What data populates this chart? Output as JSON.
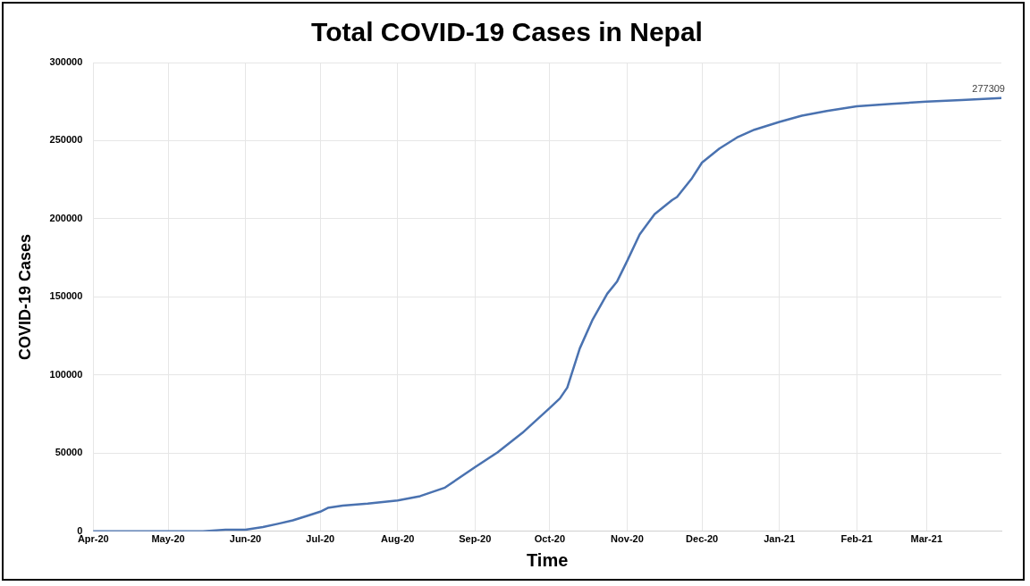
{
  "chart_data": {
    "type": "line",
    "title": "Total COVID-19 Cases in Nepal",
    "xlabel": "Time",
    "ylabel": "COVID-19 Cases",
    "x": [
      "2020-04-01",
      "2020-04-15",
      "2020-05-01",
      "2020-05-15",
      "2020-05-24",
      "2020-06-01",
      "2020-06-08",
      "2020-06-14",
      "2020-06-20",
      "2020-06-26",
      "2020-07-01",
      "2020-07-04",
      "2020-07-10",
      "2020-07-20",
      "2020-08-01",
      "2020-08-10",
      "2020-08-20",
      "2020-09-01",
      "2020-09-10",
      "2020-09-20",
      "2020-10-01",
      "2020-10-05",
      "2020-10-08",
      "2020-10-13",
      "2020-10-18",
      "2020-10-24",
      "2020-10-28",
      "2020-11-01",
      "2020-11-06",
      "2020-11-12",
      "2020-11-19",
      "2020-11-21",
      "2020-11-27",
      "2020-12-01",
      "2020-12-08",
      "2020-12-15",
      "2020-12-22",
      "2021-01-01",
      "2021-01-10",
      "2021-01-20",
      "2021-02-01",
      "2021-02-15",
      "2021-03-01",
      "2021-03-15",
      "2021-03-31"
    ],
    "series": [
      {
        "color": "#4a72b0",
        "values": [
          0,
          0,
          0,
          0,
          1000,
          1000,
          2700,
          4800,
          7000,
          10000,
          12600,
          15000,
          16500,
          17800,
          19800,
          22500,
          28000,
          41000,
          50500,
          63000,
          79000,
          85000,
          92000,
          117000,
          135000,
          152000,
          160000,
          173000,
          190000,
          203000,
          212000,
          214000,
          226000,
          236000,
          245000,
          252000,
          257000,
          262000,
          266000,
          269000,
          272000,
          273500,
          275000,
          276000,
          277309
        ]
      }
    ],
    "xlim": [
      "2020-04-01",
      "2021-03-31"
    ],
    "xticks": [
      {
        "value": "2020-04-01",
        "label": "Apr-20"
      },
      {
        "value": "2020-05-01",
        "label": "May-20"
      },
      {
        "value": "2020-06-01",
        "label": "Jun-20"
      },
      {
        "value": "2020-07-01",
        "label": "Jul-20"
      },
      {
        "value": "2020-08-01",
        "label": "Aug-20"
      },
      {
        "value": "2020-09-01",
        "label": "Sep-20"
      },
      {
        "value": "2020-10-01",
        "label": "Oct-20"
      },
      {
        "value": "2020-11-01",
        "label": "Nov-20"
      },
      {
        "value": "2020-12-01",
        "label": "Dec-20"
      },
      {
        "value": "2021-01-01",
        "label": "Jan-21"
      },
      {
        "value": "2021-02-01",
        "label": "Feb-21"
      },
      {
        "value": "2021-03-01",
        "label": "Mar-21"
      }
    ],
    "ylim": [
      0,
      300000
    ],
    "yticks": [
      0,
      50000,
      100000,
      150000,
      200000,
      250000,
      300000
    ],
    "grid": true,
    "legend": false,
    "marker": "none",
    "line_style": "solid",
    "annotations": [
      {
        "text": "277309",
        "x": "2021-03-31",
        "y": 277309
      }
    ]
  }
}
